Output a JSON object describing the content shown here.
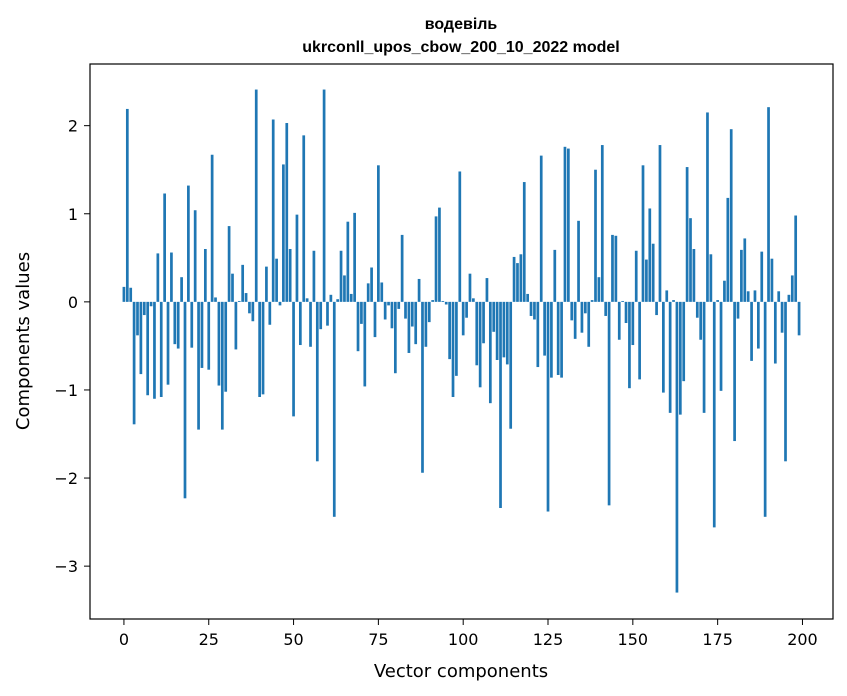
{
  "chart_data": {
    "type": "bar",
    "title_line1": "водевіль",
    "title_line2": "ukrconll_upos_cbow_200_10_2022 model",
    "xlabel": "Vector components",
    "ylabel": "Components values",
    "xlim": [
      -10,
      209
    ],
    "ylim": [
      -3.6,
      2.7
    ],
    "xticks": [
      0,
      25,
      50,
      75,
      100,
      125,
      150,
      175,
      200
    ],
    "xtick_labels": [
      "0",
      "25",
      "50",
      "75",
      "100",
      "125",
      "150",
      "175",
      "200"
    ],
    "yticks": [
      -3,
      -2,
      -1,
      0,
      1,
      2
    ],
    "ytick_labels": [
      "−3",
      "−2",
      "−1",
      "0",
      "1",
      "2"
    ],
    "bar_color": "#1f77b4",
    "values": [
      0.17,
      2.19,
      0.16,
      -1.39,
      -0.38,
      -0.82,
      -0.15,
      -1.06,
      -0.05,
      -1.1,
      0.55,
      -1.08,
      1.23,
      -0.94,
      0.56,
      -0.48,
      -0.53,
      0.28,
      -2.23,
      1.32,
      -0.52,
      1.04,
      -1.45,
      -0.75,
      0.6,
      -0.77,
      1.67,
      0.05,
      -0.95,
      -1.45,
      -1.02,
      0.86,
      0.32,
      -0.54,
      0.01,
      0.42,
      0.1,
      -0.13,
      -0.22,
      2.41,
      -1.08,
      -1.05,
      0.4,
      -0.26,
      2.07,
      0.49,
      -0.04,
      1.56,
      2.03,
      0.6,
      -1.3,
      0.99,
      -0.49,
      1.89,
      0.04,
      -0.51,
      0.58,
      -1.81,
      -0.31,
      2.41,
      -0.27,
      0.08,
      -2.44,
      0.03,
      0.58,
      0.3,
      0.91,
      0.09,
      1.01,
      -0.56,
      -0.25,
      -0.96,
      0.21,
      0.39,
      -0.4,
      1.55,
      0.22,
      -0.2,
      -0.04,
      -0.3,
      -0.81,
      -0.08,
      0.76,
      -0.19,
      -0.58,
      -0.28,
      -0.48,
      0.26,
      -1.94,
      -0.51,
      -0.23,
      0.02,
      0.97,
      1.07,
      0.01,
      -0.03,
      -0.65,
      -1.08,
      -0.84,
      1.48,
      -0.38,
      -0.18,
      0.32,
      0.04,
      -0.72,
      -0.97,
      -0.47,
      0.27,
      -1.15,
      -0.34,
      -0.66,
      -2.34,
      -0.63,
      -0.71,
      -1.44,
      0.51,
      0.44,
      0.54,
      1.36,
      0.09,
      -0.16,
      -0.2,
      -0.74,
      1.66,
      -0.61,
      -2.38,
      -0.86,
      0.59,
      -0.83,
      -0.86,
      1.76,
      1.74,
      -0.21,
      -0.42,
      0.92,
      -0.35,
      -0.13,
      -0.51,
      0.02,
      1.5,
      0.28,
      1.78,
      -0.16,
      -2.31,
      0.76,
      0.75,
      -0.43,
      0.01,
      -0.24,
      -0.98,
      -0.49,
      0.58,
      -0.88,
      1.55,
      0.48,
      1.06,
      0.66,
      -0.15,
      1.78,
      -1.03,
      0.13,
      -1.26,
      0.02,
      -3.3,
      -1.28,
      -0.9,
      1.53,
      0.95,
      0.6,
      -0.18,
      -0.43,
      -1.26,
      2.15,
      0.54,
      -2.56,
      0.02,
      -1.01,
      0.24,
      1.18,
      1.96,
      -1.58,
      -0.19,
      0.59,
      0.72,
      0.12,
      -0.67,
      0.13,
      -0.53,
      0.57,
      -2.44,
      2.21,
      0.49,
      -0.7,
      0.12,
      -0.35,
      -1.81,
      0.08,
      0.3,
      0.98,
      -0.38
    ]
  }
}
